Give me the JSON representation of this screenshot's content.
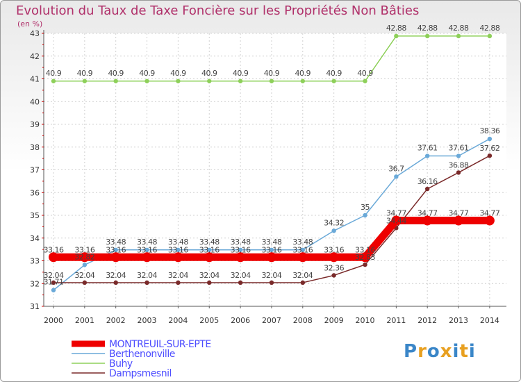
{
  "title": "Evolution du Taux de Taxe Foncière sur les Propriétés Non Bâties",
  "unit": "(en %)",
  "logo": {
    "text": "Proxiti",
    "letters": [
      "P",
      "r",
      "o",
      "x",
      "i",
      "t",
      "i"
    ],
    "colors": [
      "#3a86c8",
      "#e8a020",
      "#3a86c8",
      "#e8a020",
      "#3a86c8",
      "#e8a020",
      "#3a86c8"
    ]
  },
  "chart_data": {
    "type": "line",
    "title": "Evolution du Taux de Taxe Foncière sur les Propriétés Non Bâties",
    "ylabel": "(en %)",
    "ylim": [
      31,
      43
    ],
    "yticks": [
      "31",
      "32",
      "33",
      "34",
      "35",
      "36",
      "37",
      "38",
      "39",
      "40",
      "41",
      "42",
      "43"
    ],
    "x": [
      "2000",
      "2001",
      "2002",
      "2003",
      "2004",
      "2005",
      "2006",
      "2007",
      "2008",
      "2009",
      "2010",
      "2011",
      "2012",
      "2013",
      "2014"
    ],
    "series": [
      {
        "name": "MONTREUIL-SUR-EPTE",
        "color": "#ee0000",
        "legend_color": "#4d4dff",
        "values": [
          33.16,
          33.16,
          33.16,
          33.16,
          33.16,
          33.16,
          33.16,
          33.16,
          33.16,
          33.16,
          33.16,
          34.77,
          34.77,
          34.77,
          34.77
        ],
        "labels": [
          "33.16",
          "33.16",
          "33.16",
          "33.16",
          "33.16",
          "33.16",
          "33.16",
          "33.16",
          "33.16",
          "33.16",
          "33.16",
          "34.77",
          "34.77",
          "34.77",
          "34.77"
        ]
      },
      {
        "name": "Berthenonville",
        "color": "#6aa9d8",
        "legend_color": "#4d4dff",
        "values": [
          31.71,
          32.82,
          33.48,
          33.48,
          33.48,
          33.48,
          33.48,
          33.48,
          33.48,
          34.32,
          35,
          36.7,
          37.61,
          37.61,
          38.36
        ],
        "labels": [
          "31.71",
          "32.82",
          "33.48",
          "33.48",
          "33.48",
          "33.48",
          "33.48",
          "33.48",
          "33.48",
          "34.32",
          "35",
          "36.7",
          "37.61",
          "37.61",
          "38.36"
        ]
      },
      {
        "name": "Buhy",
        "color": "#8ed05a",
        "legend_color": "#4d4dff",
        "values": [
          40.9,
          40.9,
          40.9,
          40.9,
          40.9,
          40.9,
          40.9,
          40.9,
          40.9,
          40.9,
          40.9,
          42.88,
          42.88,
          42.88,
          42.88
        ],
        "labels": [
          "40.9",
          "40.9",
          "40.9",
          "40.9",
          "40.9",
          "40.9",
          "40.9",
          "40.9",
          "40.9",
          "40.9",
          "40.9",
          "42.88",
          "42.88",
          "42.88",
          "42.88"
        ]
      },
      {
        "name": "Dampsmesnil",
        "color": "#7a2a2a",
        "legend_color": "#4d4dff",
        "values": [
          32.04,
          32.04,
          32.04,
          32.04,
          32.04,
          32.04,
          32.04,
          32.04,
          32.04,
          32.36,
          32.83,
          34.44,
          36.16,
          36.88,
          37.62
        ],
        "labels": [
          "32.04",
          "32.04",
          "32.04",
          "32.04",
          "32.04",
          "32.04",
          "32.04",
          "32.04",
          "32.04",
          "32.36",
          "32.83",
          "34.44",
          "36.16",
          "36.88",
          "37.62"
        ]
      }
    ]
  }
}
